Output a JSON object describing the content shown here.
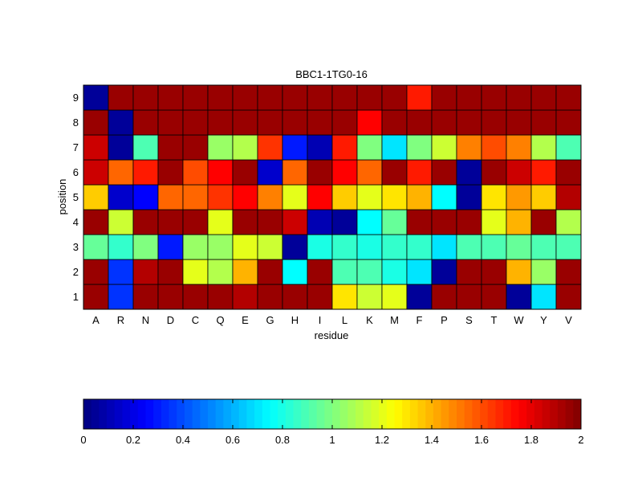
{
  "chart_data": {
    "type": "heatmap",
    "title": "BBC1-1TG0-16",
    "xlabel": "residue",
    "ylabel": "position",
    "x_categories": [
      "A",
      "R",
      "N",
      "D",
      "C",
      "Q",
      "E",
      "G",
      "H",
      "I",
      "L",
      "K",
      "M",
      "F",
      "P",
      "S",
      "T",
      "W",
      "Y",
      "V"
    ],
    "y_categories": [
      "1",
      "2",
      "3",
      "4",
      "5",
      "6",
      "7",
      "8",
      "9"
    ],
    "values": [
      [
        1.95,
        0.35,
        1.95,
        1.95,
        1.95,
        1.95,
        1.9,
        1.95,
        1.95,
        1.95,
        1.3,
        1.15,
        1.2,
        0.05,
        1.95,
        1.95,
        1.95,
        0.05,
        0.7,
        1.95
      ],
      [
        1.95,
        0.35,
        1.9,
        1.95,
        1.2,
        1.1,
        1.4,
        1.95,
        0.75,
        1.95,
        0.9,
        0.9,
        0.8,
        0.7,
        0.05,
        1.95,
        1.95,
        1.4,
        1.05,
        1.95
      ],
      [
        0.95,
        0.85,
        1.0,
        0.3,
        1.05,
        1.05,
        1.2,
        1.15,
        0.05,
        0.8,
        0.85,
        0.8,
        0.85,
        0.85,
        0.7,
        0.9,
        0.9,
        0.95,
        0.9,
        0.9
      ],
      [
        1.95,
        1.15,
        1.95,
        1.95,
        1.95,
        1.2,
        1.95,
        1.95,
        1.85,
        0.1,
        0.05,
        0.75,
        0.95,
        1.95,
        1.95,
        1.95,
        1.2,
        1.4,
        1.95,
        1.1
      ],
      [
        1.35,
        0.15,
        0.25,
        1.55,
        1.55,
        1.65,
        1.75,
        1.5,
        1.2,
        1.75,
        1.35,
        1.2,
        1.3,
        1.4,
        0.75,
        0.05,
        1.3,
        1.45,
        1.35,
        1.9
      ],
      [
        1.85,
        1.55,
        1.7,
        1.95,
        1.6,
        1.75,
        1.95,
        0.15,
        1.55,
        1.95,
        1.75,
        1.55,
        1.95,
        1.7,
        1.95,
        0.05,
        1.95,
        1.85,
        1.7,
        1.95
      ],
      [
        1.85,
        0.05,
        0.9,
        1.95,
        1.95,
        1.05,
        1.1,
        1.65,
        0.3,
        0.1,
        1.7,
        1.0,
        0.7,
        1.0,
        1.15,
        1.5,
        1.6,
        1.5,
        1.1,
        0.9
      ],
      [
        1.95,
        0.05,
        1.95,
        1.95,
        1.95,
        1.95,
        1.95,
        1.95,
        1.95,
        1.95,
        1.95,
        1.75,
        1.95,
        1.95,
        1.95,
        1.95,
        1.95,
        1.95,
        1.95,
        1.95
      ],
      [
        0.05,
        1.95,
        1.95,
        1.95,
        1.95,
        1.95,
        1.95,
        1.95,
        1.95,
        1.95,
        1.95,
        1.95,
        1.95,
        1.7,
        1.95,
        1.95,
        1.95,
        1.95,
        1.95,
        1.95
      ]
    ],
    "colorscale": "jet",
    "clim": [
      0,
      2
    ],
    "colorbar": {
      "orientation": "horizontal",
      "placement": "bottom",
      "tick_labels": [
        "0",
        "0.2",
        "0.4",
        "0.6",
        "0.8",
        "1",
        "1.2",
        "1.4",
        "1.6",
        "1.8",
        "2"
      ]
    },
    "grid": false
  }
}
